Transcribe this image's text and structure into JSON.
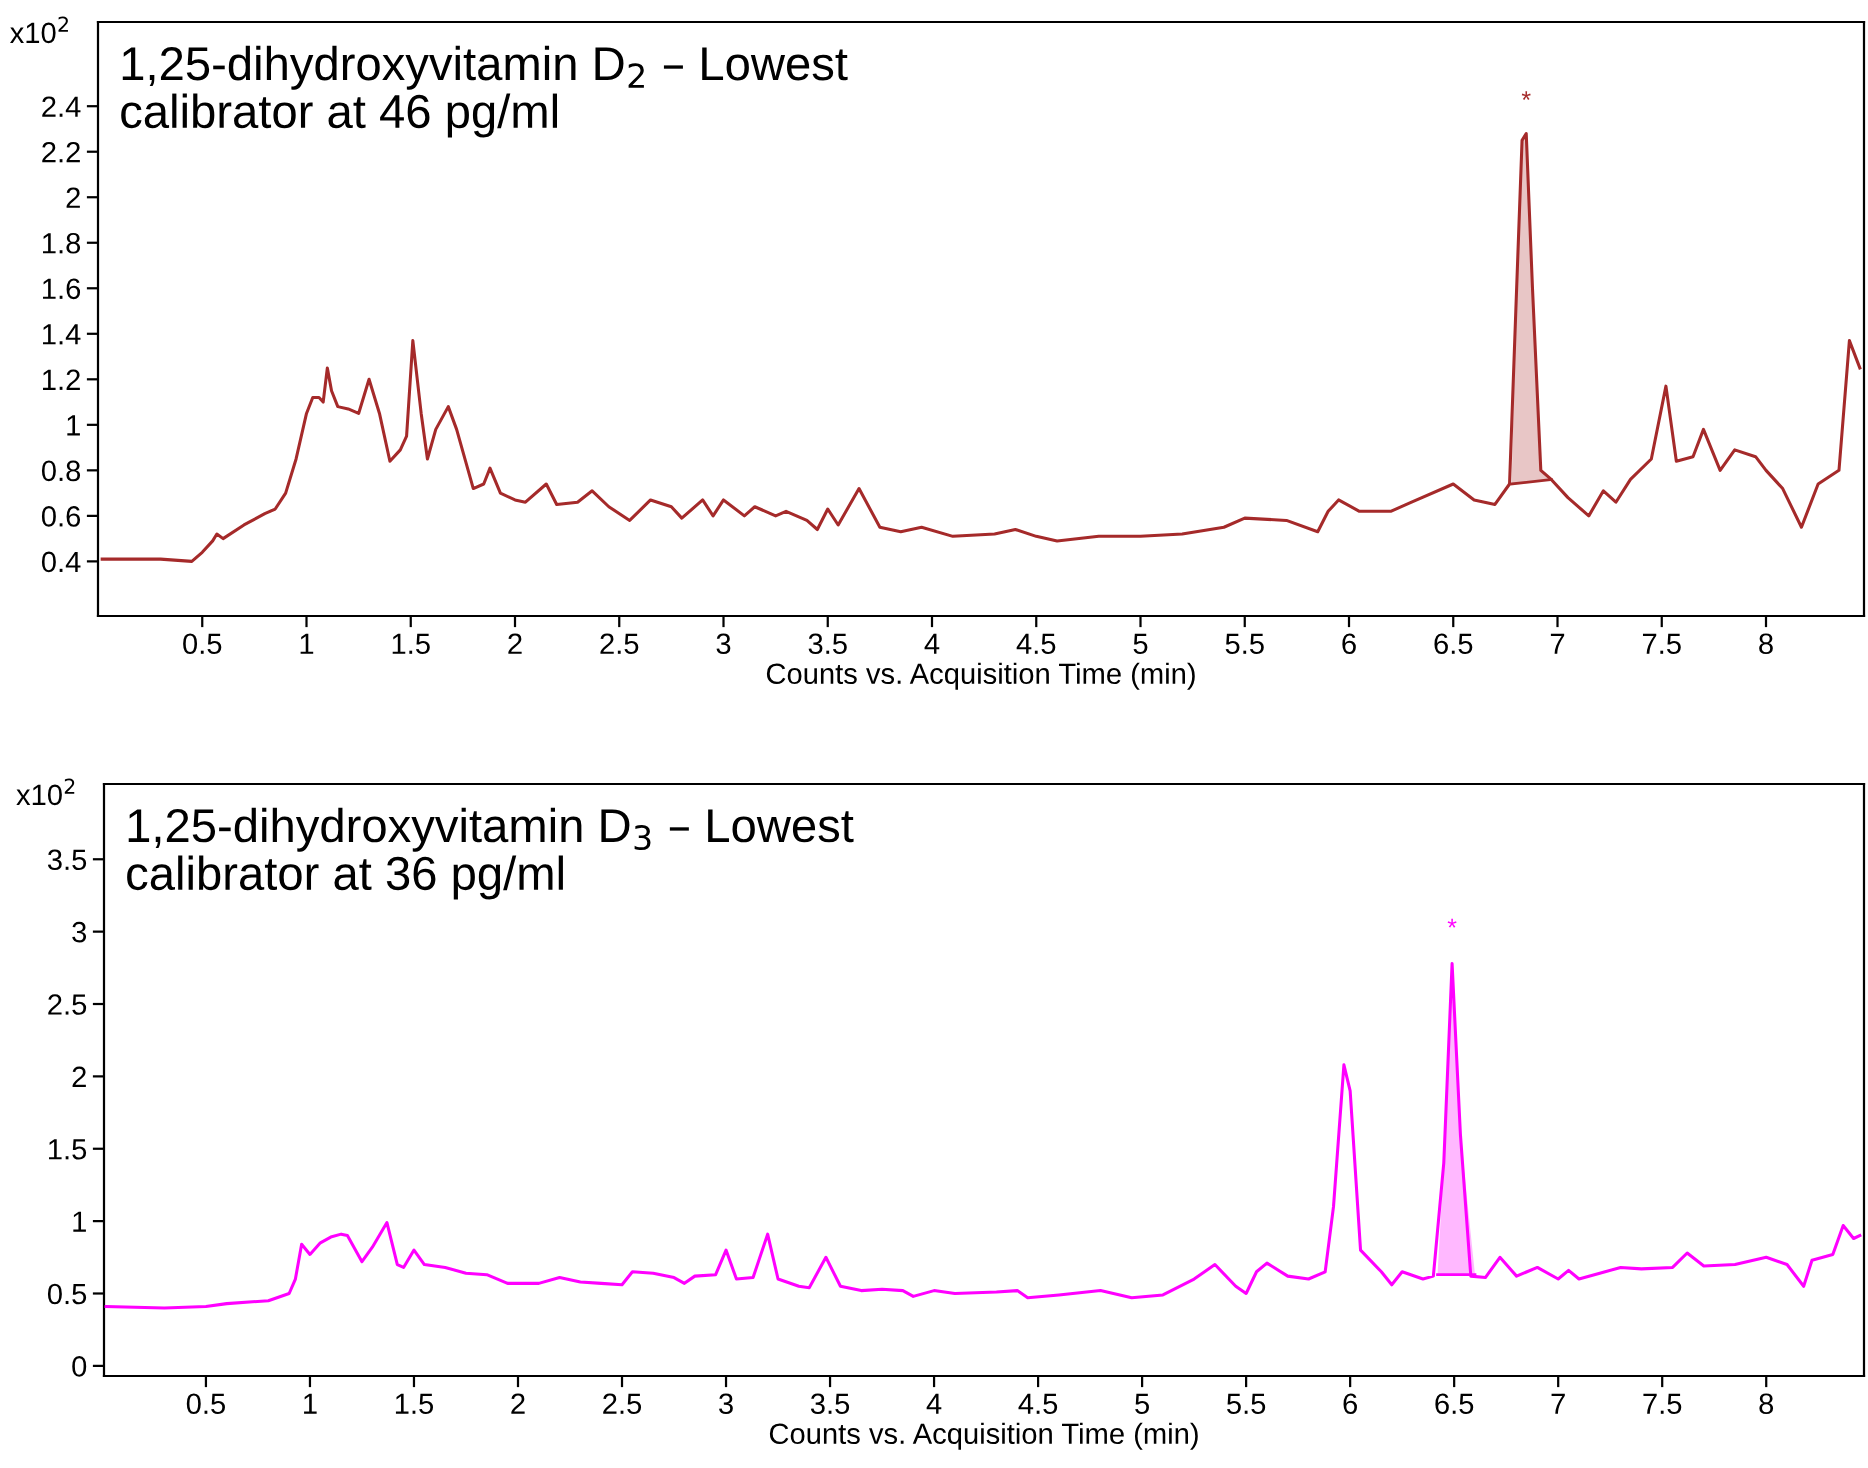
{
  "chart_data": [
    {
      "type": "line",
      "title": "1,25-dihydroxyvitamin D$_{2}$ – Lowest\ncalibrator at 46 pg/ml",
      "xlabel": "Counts vs. Acquisition Time (min)",
      "annotations": [
        "x10$^{2}$",
        "*"
      ],
      "xlim": [
        0.0,
        8.47
      ],
      "xticks": [
        0.5,
        1,
        1.5,
        2,
        2.5,
        3,
        3.5,
        4,
        4.5,
        5,
        5.5,
        6,
        6.5,
        7,
        7.5,
        8
      ],
      "ylim": [
        0.16,
        2.77
      ],
      "yticks": [
        0.4,
        0.6,
        0.8,
        1,
        1.2,
        1.4,
        1.6,
        1.8,
        2,
        2.2,
        2.4
      ],
      "grid": false,
      "legend": false,
      "marker": "none",
      "line_style": "solid",
      "series": [
        {
          "color": "#a52a2a",
          "x": [
            0.02,
            0.3,
            0.45,
            0.5,
            0.55,
            0.57,
            0.6,
            0.7,
            0.8,
            0.85,
            0.9,
            0.95,
            1.0,
            1.03,
            1.06,
            1.08,
            1.1,
            1.12,
            1.15,
            1.2,
            1.25,
            1.3,
            1.35,
            1.4,
            1.45,
            1.48,
            1.51,
            1.55,
            1.58,
            1.62,
            1.68,
            1.72,
            1.8,
            1.85,
            1.88,
            1.93,
            2.0,
            2.05,
            2.15,
            2.2,
            2.3,
            2.37,
            2.45,
            2.55,
            2.65,
            2.75,
            2.8,
            2.9,
            2.95,
            3.0,
            3.1,
            3.15,
            3.25,
            3.3,
            3.4,
            3.45,
            3.5,
            3.55,
            3.65,
            3.75,
            3.85,
            3.95,
            4.1,
            4.3,
            4.4,
            4.5,
            4.6,
            4.8,
            5.0,
            5.2,
            5.4,
            5.5,
            5.7,
            5.85,
            5.9,
            5.95,
            6.05,
            6.2,
            6.3,
            6.5,
            6.6,
            6.7,
            6.77,
            6.8,
            6.83,
            6.85,
            6.88,
            6.92,
            6.97,
            7.05,
            7.15,
            7.22,
            7.28,
            7.35,
            7.45,
            7.52,
            7.57,
            7.65,
            7.7,
            7.78,
            7.85,
            7.95,
            8.0,
            8.08,
            8.17,
            8.25,
            8.35,
            8.4,
            8.45
          ],
          "values": [
            0.41,
            0.41,
            0.4,
            0.44,
            0.49,
            0.52,
            0.5,
            0.56,
            0.61,
            0.63,
            0.7,
            0.85,
            1.05,
            1.12,
            1.12,
            1.1,
            1.25,
            1.15,
            1.08,
            1.07,
            1.05,
            1.2,
            1.05,
            0.84,
            0.89,
            0.95,
            1.37,
            1.05,
            0.85,
            0.98,
            1.08,
            0.98,
            0.72,
            0.74,
            0.81,
            0.7,
            0.67,
            0.66,
            0.74,
            0.65,
            0.66,
            0.71,
            0.64,
            0.58,
            0.67,
            0.64,
            0.59,
            0.67,
            0.6,
            0.67,
            0.6,
            0.64,
            0.6,
            0.62,
            0.58,
            0.54,
            0.63,
            0.56,
            0.72,
            0.55,
            0.53,
            0.55,
            0.51,
            0.52,
            0.54,
            0.51,
            0.49,
            0.51,
            0.51,
            0.52,
            0.55,
            0.59,
            0.58,
            0.53,
            0.62,
            0.67,
            0.62,
            0.62,
            0.66,
            0.74,
            0.67,
            0.65,
            0.74,
            1.5,
            2.25,
            2.28,
            1.6,
            0.8,
            0.76,
            0.68,
            0.6,
            0.71,
            0.66,
            0.76,
            0.85,
            1.17,
            0.84,
            0.86,
            0.98,
            0.8,
            0.89,
            0.86,
            0.8,
            0.72,
            0.55,
            0.74,
            0.8,
            1.37,
            1.25
          ]
        },
        {
          "type": "area",
          "color": "#e8c6c6",
          "x": [
            6.78,
            6.8,
            6.83,
            6.85,
            6.88,
            6.92,
            6.97
          ],
          "values": [
            0.74,
            1.5,
            2.25,
            2.27,
            1.6,
            0.8,
            0.76
          ]
        }
      ]
    },
    {
      "type": "line",
      "title": "1,25-dihydroxyvitamin D$_{3}$ – Lowest\ncalibrator at 36 pg/ml",
      "xlabel": "Counts vs. Acquisition Time (min)",
      "annotations": [
        "x10$^{2}$",
        "*"
      ],
      "xlim": [
        0.01,
        8.47
      ],
      "xticks": [
        0.5,
        1,
        1.5,
        2,
        2.5,
        3,
        3.5,
        4,
        4.5,
        5,
        5.5,
        6,
        6.5,
        7,
        7.5,
        8
      ],
      "ylim": [
        -0.07,
        4.02
      ],
      "yticks": [
        0,
        0.5,
        1,
        1.5,
        2,
        2.5,
        3,
        3.5
      ],
      "grid": false,
      "legend": false,
      "marker": "none",
      "line_style": "solid",
      "series": [
        {
          "color": "#ff00ff",
          "x": [
            0.02,
            0.3,
            0.5,
            0.6,
            0.8,
            0.9,
            0.93,
            0.96,
            1.0,
            1.05,
            1.1,
            1.15,
            1.18,
            1.25,
            1.3,
            1.37,
            1.42,
            1.45,
            1.5,
            1.55,
            1.65,
            1.75,
            1.85,
            1.95,
            2.1,
            2.2,
            2.3,
            2.4,
            2.5,
            2.55,
            2.65,
            2.75,
            2.8,
            2.85,
            2.95,
            3.0,
            3.05,
            3.13,
            3.2,
            3.25,
            3.35,
            3.4,
            3.48,
            3.55,
            3.65,
            3.75,
            3.85,
            3.9,
            4.0,
            4.1,
            4.3,
            4.4,
            4.45,
            4.6,
            4.8,
            4.95,
            5.1,
            5.25,
            5.35,
            5.45,
            5.5,
            5.55,
            5.6,
            5.7,
            5.8,
            5.88,
            5.92,
            5.97,
            6.0,
            6.05,
            6.15,
            6.2,
            6.25,
            6.35,
            6.4,
            6.45,
            6.49,
            6.53,
            6.58,
            6.65,
            6.72,
            6.8,
            6.9,
            7.0,
            7.05,
            7.1,
            7.2,
            7.3,
            7.4,
            7.55,
            7.62,
            7.7,
            7.85,
            8.0,
            8.1,
            8.18,
            8.22,
            8.32,
            8.37,
            8.42,
            8.45
          ],
          "values": [
            0.41,
            0.4,
            0.41,
            0.43,
            0.45,
            0.5,
            0.6,
            0.84,
            0.77,
            0.85,
            0.89,
            0.91,
            0.9,
            0.72,
            0.82,
            0.99,
            0.7,
            0.68,
            0.8,
            0.7,
            0.68,
            0.64,
            0.63,
            0.57,
            0.57,
            0.61,
            0.58,
            0.57,
            0.56,
            0.65,
            0.64,
            0.61,
            0.57,
            0.62,
            0.63,
            0.8,
            0.6,
            0.61,
            0.91,
            0.6,
            0.55,
            0.54,
            0.75,
            0.55,
            0.52,
            0.53,
            0.52,
            0.48,
            0.52,
            0.5,
            0.51,
            0.52,
            0.47,
            0.49,
            0.52,
            0.47,
            0.49,
            0.6,
            0.7,
            0.55,
            0.5,
            0.65,
            0.71,
            0.62,
            0.6,
            0.65,
            1.1,
            2.08,
            1.9,
            0.8,
            0.65,
            0.56,
            0.65,
            0.6,
            0.62,
            1.4,
            2.78,
            1.6,
            0.62,
            0.61,
            0.75,
            0.62,
            0.68,
            0.6,
            0.66,
            0.6,
            0.64,
            0.68,
            0.67,
            0.68,
            0.78,
            0.69,
            0.7,
            0.75,
            0.7,
            0.55,
            0.73,
            0.77,
            0.97,
            0.88,
            0.9
          ]
        },
        {
          "type": "area",
          "color": "#ffb8ff",
          "x": [
            6.42,
            6.45,
            6.49,
            6.53,
            6.6
          ],
          "values": [
            0.63,
            1.4,
            2.78,
            1.6,
            0.63
          ]
        }
      ]
    }
  ]
}
